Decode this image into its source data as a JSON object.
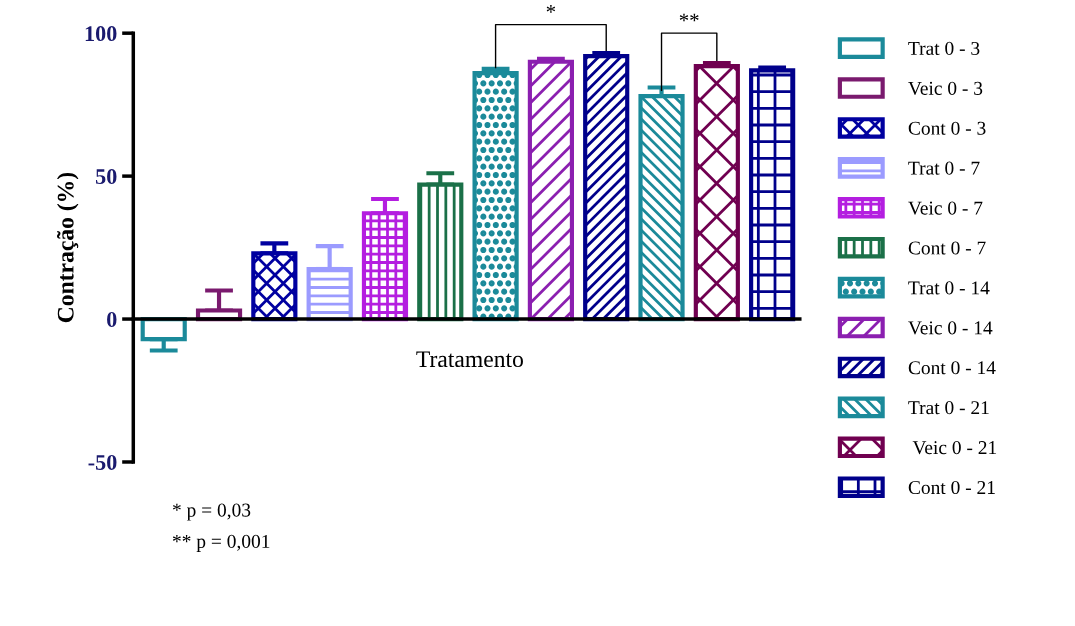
{
  "chart_data": {
    "type": "bar",
    "ylabel": "Contração (%)",
    "xlabel": "Tratamento",
    "categories": [
      null
    ],
    "series": [
      {
        "name": "Trat 0 - 3",
        "color": "#1b8a9a",
        "values": [
          -7
        ],
        "errors": [
          4
        ]
      },
      {
        "name": "Veic 0 - 3",
        "color": "#7a1a6e",
        "values": [
          3
        ],
        "errors": [
          7
        ]
      },
      {
        "name": "Cont 0 - 3",
        "color": "#0000a0",
        "values": [
          23
        ],
        "errors": [
          3.5
        ]
      },
      {
        "name": "Trat 0 - 7",
        "color": "#9b9bff",
        "values": [
          17.5
        ],
        "errors": [
          8
        ]
      },
      {
        "name": "Veic 0 - 7",
        "color": "#b41ee0",
        "values": [
          37
        ],
        "errors": [
          5
        ]
      },
      {
        "name": "Cont 0 - 7",
        "color": "#1b7048",
        "values": [
          47
        ],
        "errors": [
          4
        ]
      },
      {
        "name": "Trat 0 - 14",
        "color": "#1b8a9a",
        "values": [
          86
        ],
        "errors": [
          1.5
        ]
      },
      {
        "name": "Veic 0 - 14",
        "color": "#8b1fb0",
        "values": [
          90
        ],
        "errors": [
          1
        ]
      },
      {
        "name": "Cont 0 - 14",
        "color": "#00008b",
        "values": [
          92
        ],
        "errors": [
          1
        ]
      },
      {
        "name": "Trat 0 - 21",
        "color": "#1b8a9a",
        "values": [
          78
        ],
        "errors": [
          3
        ]
      },
      {
        "name": " Veic 0 - 21",
        "color": "#700050",
        "values": [
          88.5
        ],
        "errors": [
          1
        ]
      },
      {
        "name": "Cont 0 - 21",
        "color": "#00008b",
        "values": [
          87
        ],
        "errors": [
          1
        ]
      }
    ],
    "ylim": [
      -50,
      100
    ],
    "yticks": [
      -50,
      0,
      50,
      100
    ],
    "legend": "right",
    "annotations": [
      "*",
      "**",
      "* p = 0,03",
      "** p = 0,001"
    ]
  }
}
